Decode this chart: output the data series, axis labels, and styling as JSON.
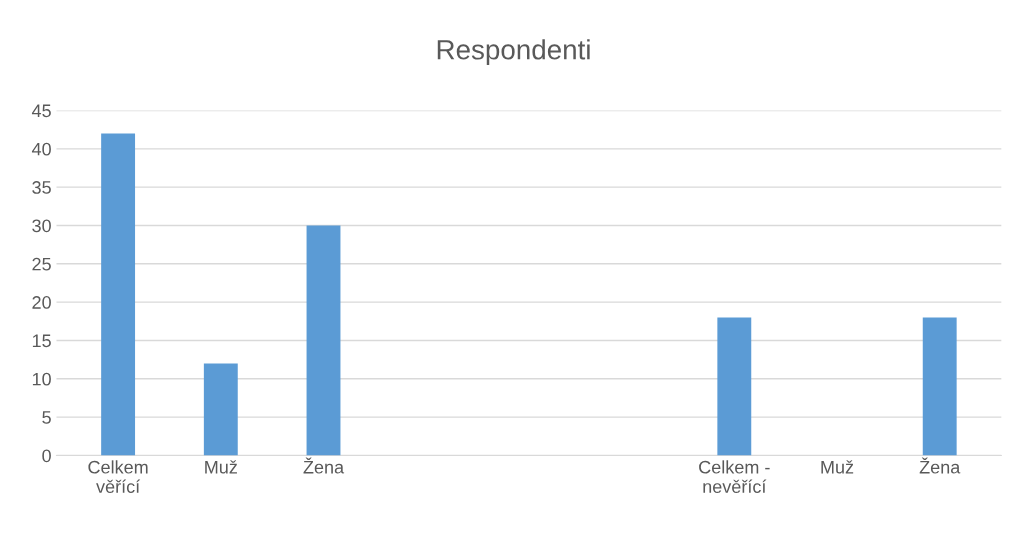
{
  "chart_data": {
    "type": "bar",
    "title": "Respondenti",
    "categories": [
      "Celkem\nvěřící",
      "Muž",
      "Žena",
      null,
      null,
      null,
      "Celkem -\nnevěřící",
      "Muž",
      "Žena"
    ],
    "values": [
      42,
      12,
      30,
      null,
      null,
      null,
      18,
      0,
      18
    ],
    "color": "#5b9bd5",
    "ylim": [
      0,
      45
    ],
    "yticks": [
      0,
      5,
      10,
      15,
      20,
      25,
      30,
      35,
      40,
      45
    ],
    "grid": "y",
    "legend": false
  }
}
